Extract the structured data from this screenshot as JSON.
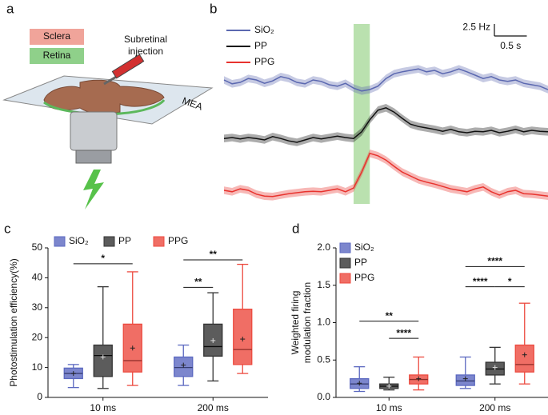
{
  "diagram": {
    "label": "a",
    "sclera": "Sclera",
    "retina": "Retina",
    "injection": [
      "Subretinal",
      "injection"
    ],
    "mea": "MEA"
  },
  "chart_data": [
    {
      "type": "line",
      "label": "b",
      "xlim": [
        0,
        5
      ],
      "ylim": [
        0,
        40
      ],
      "highlight": [
        2.0,
        2.25
      ],
      "highlight_color": "#a9d99b",
      "scalebar": {
        "y": {
          "value": 2.5,
          "label": "2.5 Hz"
        },
        "x": {
          "value": 0.5,
          "label": "0.5 s"
        }
      },
      "x": [
        0,
        0.125,
        0.25,
        0.375,
        0.5,
        0.625,
        0.75,
        0.875,
        1,
        1.125,
        1.25,
        1.375,
        1.5,
        1.625,
        1.75,
        1.875,
        2,
        2.125,
        2.25,
        2.375,
        2.5,
        2.625,
        2.75,
        2.875,
        3,
        3.125,
        3.25,
        3.375,
        3.5,
        3.625,
        3.75,
        3.875,
        4,
        4.125,
        4.25,
        4.375,
        4.5,
        4.625,
        4.75,
        4.875,
        5
      ],
      "series": [
        {
          "name": "SiO₂",
          "color": "#5b68b0",
          "error": 0.8,
          "values": [
            27.5,
            26.7,
            27.0,
            27.8,
            27.5,
            26.8,
            27.3,
            28.2,
            27.8,
            27.0,
            26.7,
            27.5,
            27.2,
            26.5,
            26.2,
            26.8,
            25.8,
            25.2,
            25.5,
            26.2,
            27.8,
            28.8,
            29.2,
            29.5,
            29.8,
            29.2,
            29.5,
            28.8,
            29.2,
            29.8,
            29.2,
            28.5,
            27.8,
            28.2,
            27.5,
            27.2,
            27.5,
            26.8,
            26.5,
            26.2,
            25.5
          ]
        },
        {
          "name": "PP",
          "color": "#111111",
          "error": 0.8,
          "values": [
            15.3,
            15.5,
            15.2,
            15.5,
            15.3,
            15.0,
            15.7,
            15.3,
            14.8,
            14.5,
            15.0,
            15.5,
            15.2,
            15.5,
            15.8,
            15.5,
            15.3,
            16.7,
            19.2,
            21.2,
            21.7,
            20.8,
            19.5,
            18.3,
            17.8,
            17.5,
            17.2,
            16.8,
            17.2,
            16.7,
            16.5,
            16.8,
            16.7,
            17.0,
            16.5,
            16.8,
            17.2,
            16.7,
            17.0,
            16.8,
            16.7
          ]
        },
        {
          "name": "PPG",
          "color": "#e8332e",
          "error": 0.8,
          "values": [
            4.5,
            4.2,
            4.8,
            4.5,
            3.7,
            3.3,
            3.2,
            3.5,
            3.8,
            4.0,
            4.2,
            4.3,
            4.2,
            4.5,
            4.8,
            4.2,
            5.0,
            8.3,
            12.2,
            11.7,
            10.8,
            9.5,
            8.3,
            7.5,
            6.7,
            6.2,
            5.8,
            5.3,
            4.8,
            4.5,
            4.2,
            4.8,
            5.2,
            4.2,
            3.5,
            4.2,
            4.5,
            3.8,
            3.7,
            3.5,
            3.3
          ]
        }
      ]
    },
    {
      "type": "box",
      "label": "c",
      "ylabel": [
        "Photostimulation efficiency(%)"
      ],
      "legend": "top",
      "categories": [
        "10 ms",
        "200 ms"
      ],
      "ylim": [
        0,
        50
      ],
      "yticks": [
        0,
        10,
        20,
        30,
        40,
        50
      ],
      "series": [
        {
          "name": "SiO₂",
          "color": "#5b68c0",
          "boxes": [
            {
              "low": 3.3,
              "q1": 6.3,
              "median": 8,
              "q3": 9.8,
              "high": 11,
              "mean": 8
            },
            {
              "low": 4,
              "q1": 7,
              "median": 10,
              "q3": 13.5,
              "high": 17.5,
              "mean": 10.8
            }
          ]
        },
        {
          "name": "PP",
          "color": "#333333",
          "boxes": [
            {
              "low": 3,
              "q1": 7,
              "median": 14,
              "q3": 17.5,
              "high": 37,
              "mean": 13.5
            },
            {
              "low": 5.5,
              "q1": 13.8,
              "median": 17,
              "q3": 24.5,
              "high": 35,
              "mean": 19
            }
          ]
        },
        {
          "name": "PPG",
          "color": "#ec4a3f",
          "boxes": [
            {
              "low": 4,
              "q1": 8.5,
              "median": 12.3,
              "q3": 24.5,
              "high": 42,
              "mean": 16.5
            },
            {
              "low": 8,
              "q1": 11,
              "median": 16,
              "q3": 29.5,
              "high": 44.5,
              "mean": 19.5
            }
          ]
        }
      ],
      "annotations": [
        {
          "text": "*",
          "from": [
            0,
            0
          ],
          "to": [
            0,
            2
          ],
          "y": 44.7
        },
        {
          "text": "**",
          "from": [
            1,
            0
          ],
          "to": [
            1,
            1
          ],
          "y": 36.8
        },
        {
          "text": "**",
          "from": [
            1,
            0
          ],
          "to": [
            1,
            2
          ],
          "y": 46
        }
      ]
    },
    {
      "type": "box",
      "label": "d",
      "ylabel": [
        "Weighted firing",
        "modulation fraction"
      ],
      "legend": "top-left",
      "categories": [
        "10 ms",
        "200 ms"
      ],
      "ylim": [
        0,
        2
      ],
      "yticks": [
        {
          "value": 0,
          "label": "0.0"
        },
        0.5,
        {
          "value": 1,
          "label": "1.0"
        },
        1.5,
        {
          "value": 2,
          "label": "2.0"
        }
      ],
      "series": [
        {
          "name": "SiO₂",
          "color": "#5b68c0",
          "boxes": [
            {
              "low": 0.08,
              "q1": 0.12,
              "median": 0.18,
              "q3": 0.25,
              "high": 0.41,
              "mean": 0.19
            },
            {
              "low": 0.12,
              "q1": 0.16,
              "median": 0.22,
              "q3": 0.3,
              "high": 0.54,
              "mean": 0.25
            }
          ]
        },
        {
          "name": "PP",
          "color": "#333333",
          "boxes": [
            {
              "low": 0.1,
              "q1": 0.12,
              "median": 0.15,
              "q3": 0.18,
              "high": 0.27,
              "mean": 0.15
            },
            {
              "low": 0.18,
              "q1": 0.3,
              "median": 0.38,
              "q3": 0.47,
              "high": 0.67,
              "mean": 0.4
            }
          ]
        },
        {
          "name": "PPG",
          "color": "#ec4a3f",
          "boxes": [
            {
              "low": 0.1,
              "q1": 0.18,
              "median": 0.24,
              "q3": 0.3,
              "high": 0.54,
              "mean": 0.25
            },
            {
              "low": 0.18,
              "q1": 0.34,
              "median": 0.44,
              "q3": 0.7,
              "high": 1.26,
              "mean": 0.57
            }
          ]
        }
      ],
      "annotations": [
        {
          "text": "**",
          "from": [
            0,
            0
          ],
          "to": [
            0,
            2
          ],
          "y": 1.02
        },
        {
          "text": "****",
          "from": [
            0,
            1
          ],
          "to": [
            0,
            2
          ],
          "y": 0.79
        },
        {
          "text": "****",
          "from": [
            1,
            0
          ],
          "to": [
            1,
            2
          ],
          "y": 1.75
        },
        {
          "text": "****",
          "from": [
            1,
            0
          ],
          "to": [
            1,
            1
          ],
          "y": 1.48
        },
        {
          "text": "*",
          "from": [
            1,
            1
          ],
          "to": [
            1,
            2
          ],
          "y": 1.48
        }
      ]
    }
  ]
}
